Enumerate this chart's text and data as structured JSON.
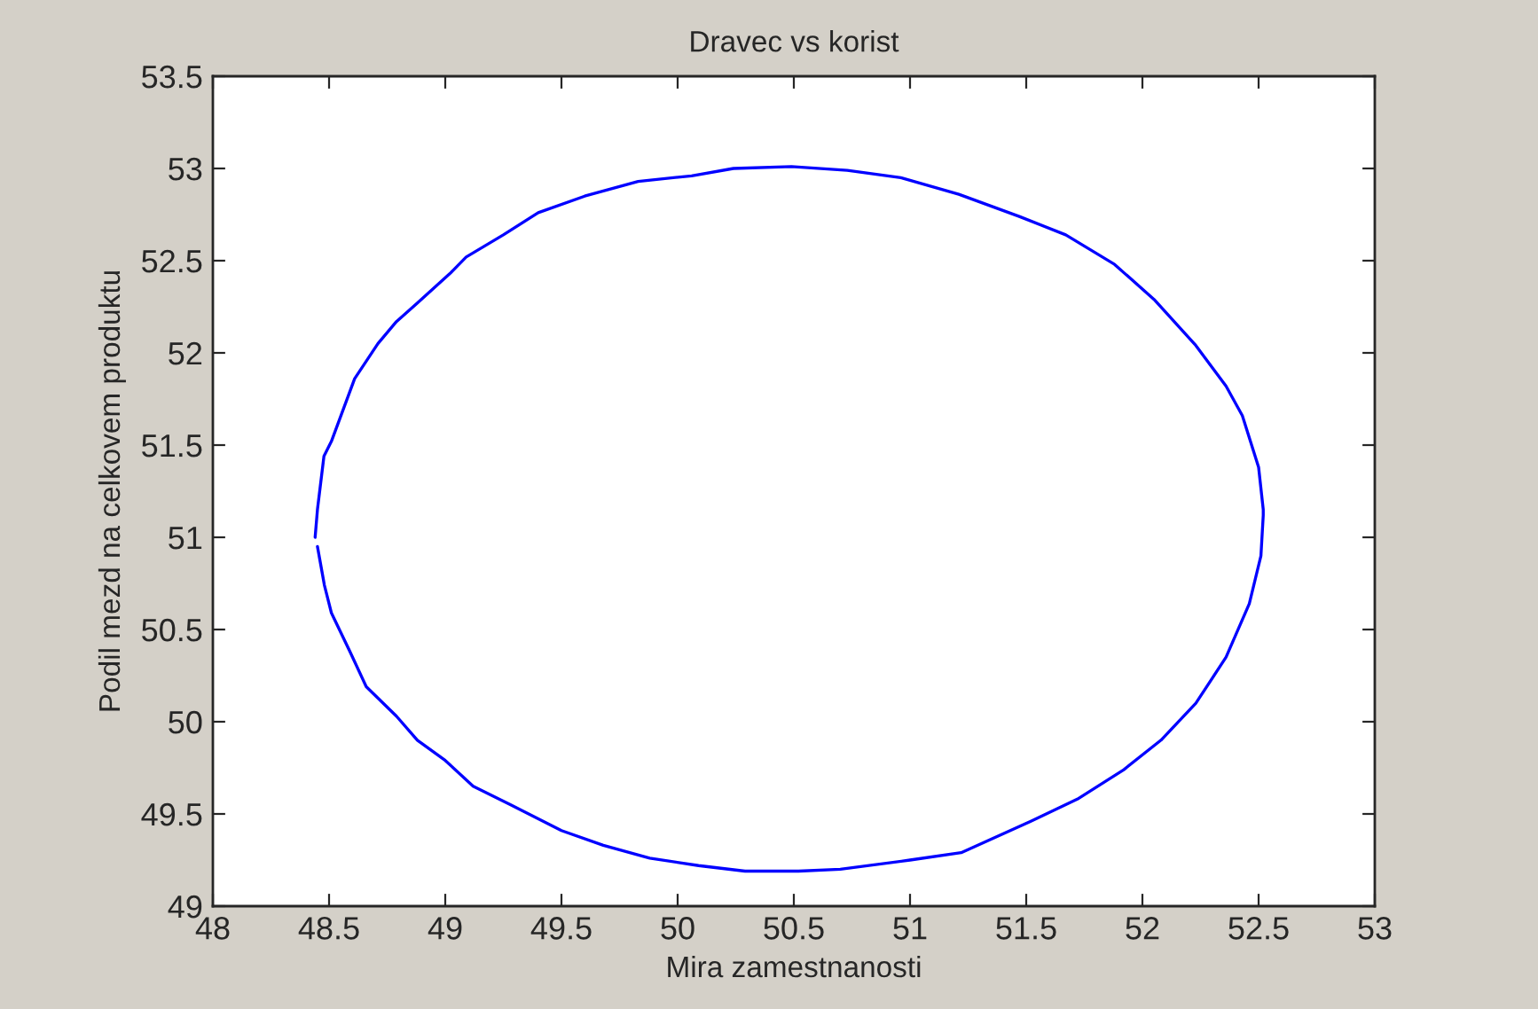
{
  "chart_data": {
    "type": "line",
    "title": "Dravec vs korist",
    "xlabel": "Mira zamestnanosti",
    "ylabel": "Podil mezd na celkovem produktu",
    "series": [
      {
        "color": "#0000ff",
        "x": [
          48.44,
          48.45,
          48.478,
          48.51,
          48.61,
          48.71,
          48.79,
          48.88,
          49.02,
          49.09,
          49.25,
          49.4,
          49.6,
          49.83,
          50.06,
          50.24,
          50.49,
          50.73,
          50.96,
          51.21,
          51.47,
          51.67,
          51.88,
          52.05,
          52.23,
          52.36,
          52.43,
          52.5,
          52.52,
          52.52,
          52.51,
          52.46,
          52.36,
          52.23,
          52.08,
          51.92,
          51.72,
          51.52,
          51.22,
          51.0,
          50.7,
          50.52,
          50.29,
          50.09,
          49.88,
          49.68,
          49.5,
          49.28,
          49.12,
          49.0,
          48.88,
          48.79,
          48.66,
          48.59,
          48.51,
          48.48,
          48.45
        ],
        "values": [
          51.0,
          51.15,
          51.44,
          51.52,
          51.86,
          52.05,
          52.17,
          52.27,
          52.43,
          52.52,
          52.64,
          52.76,
          52.85,
          52.93,
          52.96,
          53.0,
          53.01,
          52.99,
          52.95,
          52.86,
          52.74,
          52.64,
          52.48,
          52.29,
          52.04,
          51.82,
          51.66,
          51.38,
          51.15,
          51.12,
          50.9,
          50.64,
          50.35,
          50.1,
          49.9,
          49.74,
          49.58,
          49.46,
          49.29,
          49.25,
          49.2,
          49.19,
          49.19,
          49.22,
          49.26,
          49.33,
          49.41,
          49.55,
          49.65,
          49.79,
          49.9,
          50.03,
          50.19,
          50.38,
          50.59,
          50.74,
          50.95
        ]
      }
    ],
    "xlim": [
      48,
      53
    ],
    "xticks": [
      48,
      48.5,
      49,
      49.5,
      50,
      50.5,
      51,
      51.5,
      52,
      52.5,
      53
    ],
    "ylim": [
      49,
      53.5
    ],
    "yticks": [
      49,
      49.5,
      50,
      50.5,
      51,
      51.5,
      52,
      52.5,
      53,
      53.5
    ],
    "grid": false
  }
}
